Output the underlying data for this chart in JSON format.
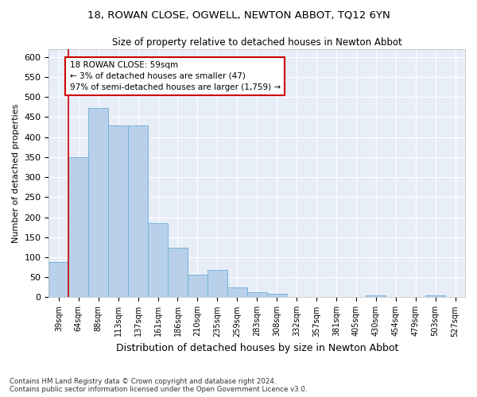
{
  "title": "18, ROWAN CLOSE, OGWELL, NEWTON ABBOT, TQ12 6YN",
  "subtitle": "Size of property relative to detached houses in Newton Abbot",
  "xlabel": "Distribution of detached houses by size in Newton Abbot",
  "ylabel": "Number of detached properties",
  "categories": [
    "39sqm",
    "64sqm",
    "88sqm",
    "113sqm",
    "137sqm",
    "161sqm",
    "186sqm",
    "210sqm",
    "235sqm",
    "259sqm",
    "283sqm",
    "308sqm",
    "332sqm",
    "357sqm",
    "381sqm",
    "405sqm",
    "430sqm",
    "454sqm",
    "479sqm",
    "503sqm",
    "527sqm"
  ],
  "values": [
    88,
    350,
    472,
    430,
    430,
    185,
    123,
    57,
    68,
    25,
    13,
    8,
    0,
    0,
    0,
    0,
    5,
    0,
    0,
    5,
    0
  ],
  "bar_color": "#b8d0ea",
  "bar_edge_color": "#6baed6",
  "annotation_border_color": "#cc0000",
  "vline_color": "#cc0000",
  "vline_x": 0.5,
  "annotation_text_line1": "18 ROWAN CLOSE: 59sqm",
  "annotation_text_line2": "← 3% of detached houses are smaller (47)",
  "annotation_text_line3": "97% of semi-detached houses are larger (1,759) →",
  "ylim": [
    0,
    620
  ],
  "yticks": [
    0,
    50,
    100,
    150,
    200,
    250,
    300,
    350,
    400,
    450,
    500,
    550,
    600
  ],
  "background_color": "#e8eef8",
  "grid_color": "#ffffff",
  "footer_line1": "Contains HM Land Registry data © Crown copyright and database right 2024.",
  "footer_line2": "Contains public sector information licensed under the Open Government Licence v3.0."
}
